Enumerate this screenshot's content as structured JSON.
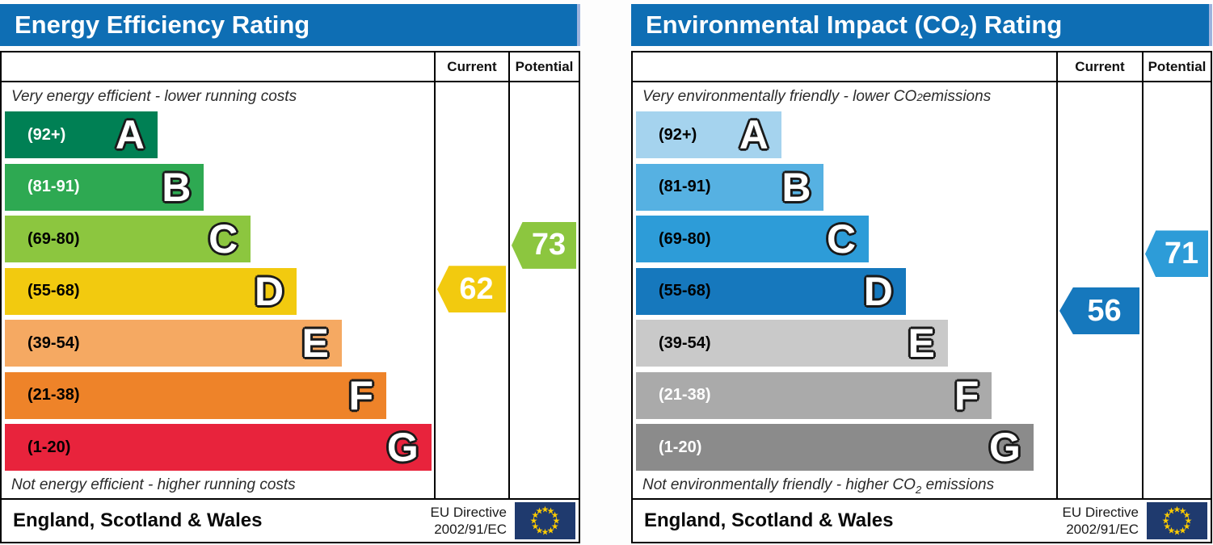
{
  "header_blue": "#0e6eb4",
  "eu_flag": {
    "bg": "#1f3a6e",
    "star": "#ffcc00"
  },
  "panels": [
    {
      "name": "energy-efficiency",
      "title": {
        "pre": "Energy Efficiency Rating",
        "sub": "",
        "post": ""
      },
      "columns": {
        "current": "Current",
        "potential": "Potential"
      },
      "top_caption": {
        "pre": "Very energy efficient - lower running costs",
        "sub": "",
        "post": ""
      },
      "bottom_caption": {
        "pre": "Not energy efficient - higher running costs",
        "sub": "",
        "post": ""
      },
      "bands": [
        {
          "letter": "A",
          "range_label": "(92+)",
          "min": 92,
          "max": 100,
          "color": "#008054",
          "width_pct": 35.6,
          "label_color": "#ffffff"
        },
        {
          "letter": "B",
          "range_label": "(81-91)",
          "min": 81,
          "max": 91,
          "color": "#2ea952",
          "width_pct": 46.4,
          "label_color": "#ffffff"
        },
        {
          "letter": "C",
          "range_label": "(69-80)",
          "min": 69,
          "max": 80,
          "color": "#8cc63f",
          "width_pct": 57.3,
          "label_color": "#000000"
        },
        {
          "letter": "D",
          "range_label": "(55-68)",
          "min": 55,
          "max": 68,
          "color": "#f2ca0f",
          "width_pct": 68.0,
          "label_color": "#000000"
        },
        {
          "letter": "E",
          "range_label": "(39-54)",
          "min": 39,
          "max": 54,
          "color": "#f5a962",
          "width_pct": 78.5,
          "label_color": "#000000"
        },
        {
          "letter": "F",
          "range_label": "(21-38)",
          "min": 21,
          "max": 38,
          "color": "#ee8329",
          "width_pct": 88.9,
          "label_color": "#000000"
        },
        {
          "letter": "G",
          "range_label": "(1-20)",
          "min": 1,
          "max": 20,
          "color": "#e8233c",
          "width_pct": 99.4,
          "label_color": "#000000"
        }
      ],
      "current": {
        "value": 62,
        "band": "D",
        "color": "#f2ca0f"
      },
      "potential": {
        "value": 73,
        "band": "C",
        "color": "#8cc63f"
      },
      "footer": {
        "region": "England, Scotland & Wales",
        "directive_line1": "EU Directive",
        "directive_line2": "2002/91/EC"
      }
    },
    {
      "name": "environmental-impact",
      "title": {
        "pre": "Environmental Impact (CO",
        "sub": "2",
        "post": ") Rating"
      },
      "columns": {
        "current": "Current",
        "potential": "Potential"
      },
      "top_caption": {
        "pre": "Very environmentally friendly - lower CO",
        "sub": "2",
        "post": " emissions"
      },
      "bottom_caption": {
        "pre": "Not environmentally friendly - higher CO",
        "sub": "2",
        "post": " emissions"
      },
      "bands": [
        {
          "letter": "A",
          "range_label": "(92+)",
          "min": 92,
          "max": 100,
          "color": "#a5d3ee",
          "width_pct": 34.6,
          "label_color": "#000000"
        },
        {
          "letter": "B",
          "range_label": "(81-91)",
          "min": 81,
          "max": 91,
          "color": "#56b1e2",
          "width_pct": 44.7,
          "label_color": "#000000"
        },
        {
          "letter": "C",
          "range_label": "(69-80)",
          "min": 69,
          "max": 80,
          "color": "#2d9cd8",
          "width_pct": 55.4,
          "label_color": "#000000"
        },
        {
          "letter": "D",
          "range_label": "(55-68)",
          "min": 55,
          "max": 68,
          "color": "#1678bd",
          "width_pct": 64.2,
          "label_color": "#000000"
        },
        {
          "letter": "E",
          "range_label": "(39-54)",
          "min": 39,
          "max": 54,
          "color": "#c9c9c9",
          "width_pct": 74.2,
          "label_color": "#000000"
        },
        {
          "letter": "F",
          "range_label": "(21-38)",
          "min": 21,
          "max": 38,
          "color": "#aaaaaa",
          "width_pct": 84.7,
          "label_color": "#ffffff"
        },
        {
          "letter": "G",
          "range_label": "(1-20)",
          "min": 1,
          "max": 20,
          "color": "#8b8b8b",
          "width_pct": 94.6,
          "label_color": "#ffffff"
        }
      ],
      "current": {
        "value": 56,
        "band": "D",
        "color": "#1678bd"
      },
      "potential": {
        "value": 71,
        "band": "C",
        "color": "#2d9cd8"
      },
      "footer": {
        "region": "England, Scotland & Wales",
        "directive_line1": "EU Directive",
        "directive_line2": "2002/91/EC"
      }
    }
  ],
  "chart_data": [
    {
      "type": "bar",
      "orientation": "horizontal",
      "title": "Energy Efficiency Rating",
      "categories": [
        "A (92+)",
        "B (81-91)",
        "C (69-80)",
        "D (55-68)",
        "E (39-54)",
        "F (21-38)",
        "G (1-20)"
      ],
      "values": [
        35.6,
        46.4,
        57.3,
        68.0,
        78.5,
        88.9,
        99.4
      ],
      "values_note": "bar lengths as % of scale column width; bands are fixed EPC scale steps",
      "series": [
        {
          "name": "Current",
          "value": 62,
          "band": "D"
        },
        {
          "name": "Potential",
          "value": 73,
          "band": "C"
        }
      ],
      "annotations": [
        "Very energy efficient - lower running costs",
        "Not energy efficient - higher running costs"
      ],
      "footer": "England, Scotland & Wales | EU Directive 2002/91/EC",
      "value_range": [
        1,
        100
      ],
      "legend_position": "columns-right"
    },
    {
      "type": "bar",
      "orientation": "horizontal",
      "title": "Environmental Impact (CO2) Rating",
      "categories": [
        "A (92+)",
        "B (81-91)",
        "C (69-80)",
        "D (55-68)",
        "E (39-54)",
        "F (21-38)",
        "G (1-20)"
      ],
      "values": [
        34.6,
        44.7,
        55.4,
        64.2,
        74.2,
        84.7,
        94.6
      ],
      "values_note": "bar lengths as % of scale column width; bands are fixed EPC scale steps",
      "series": [
        {
          "name": "Current",
          "value": 56,
          "band": "D"
        },
        {
          "name": "Potential",
          "value": 71,
          "band": "C"
        }
      ],
      "annotations": [
        "Very environmentally friendly - lower CO2 emissions",
        "Not environmentally friendly - higher CO2 emissions"
      ],
      "footer": "England, Scotland & Wales | EU Directive 2002/91/EC",
      "value_range": [
        1,
        100
      ],
      "legend_position": "columns-right"
    }
  ]
}
